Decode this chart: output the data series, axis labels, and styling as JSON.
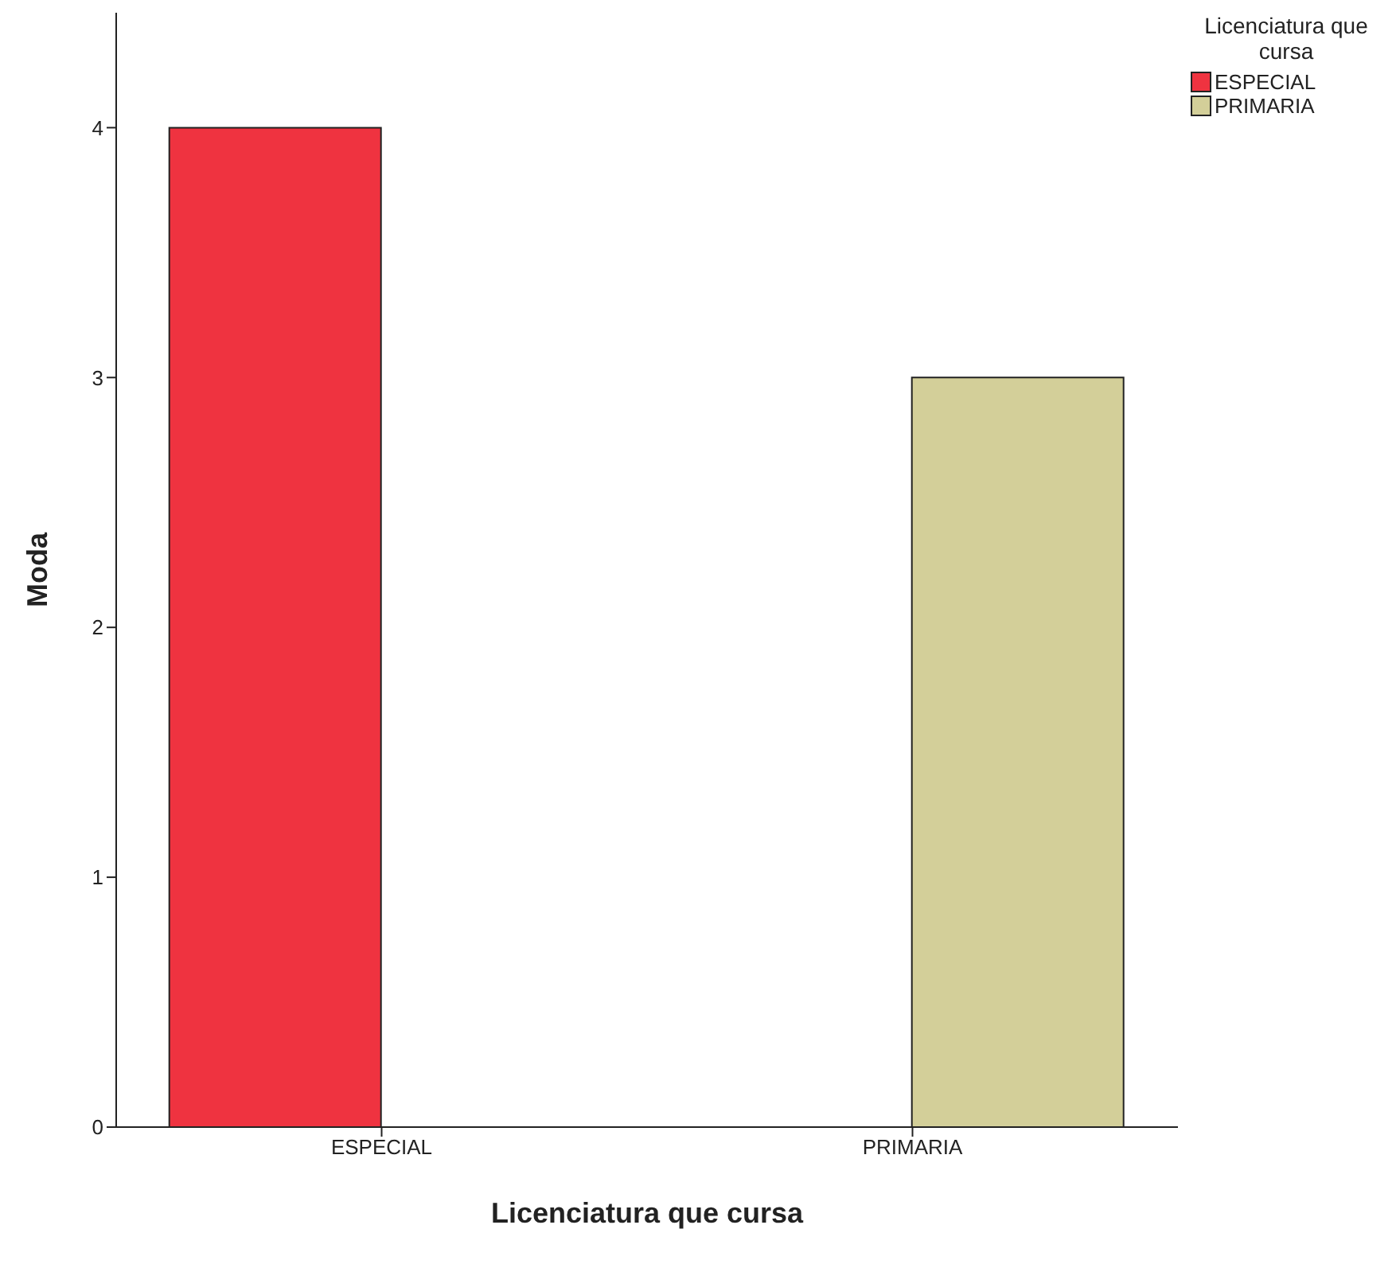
{
  "chart_data": {
    "type": "bar",
    "xlabel": "Licenciatura que cursa",
    "ylabel": "Moda",
    "legend_title": "Licenciatura que cursa",
    "categories": [
      "ESPECIAL",
      "PRIMARIA"
    ],
    "series": [
      {
        "name": "ESPECIAL",
        "color": "#ef3340",
        "values": [
          4,
          null
        ]
      },
      {
        "name": "PRIMARIA",
        "color": "#d3cf99",
        "values": [
          null,
          3
        ]
      }
    ],
    "ylim": [
      0,
      4.46
    ],
    "yticks": [
      0,
      1,
      2,
      3,
      4
    ],
    "grid": false,
    "legend": "top right"
  }
}
